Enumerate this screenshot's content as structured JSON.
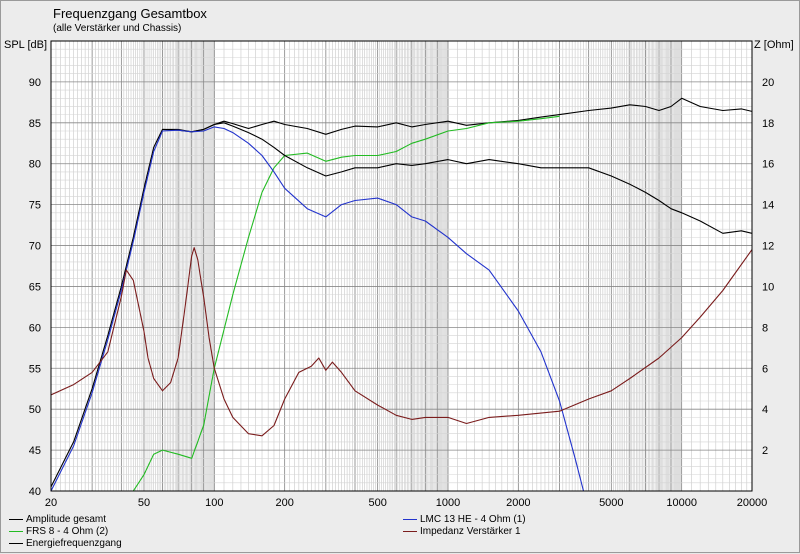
{
  "chart_data": {
    "type": "line",
    "title": "Frequenzgang Gesamtbox",
    "subtitle": "(alle Verstärker und Chassis)",
    "ylabel": "SPL [dB]",
    "y2label": "Z [Ohm]",
    "x_scale": "log",
    "xlim": [
      20,
      20000
    ],
    "ylim": [
      40,
      95
    ],
    "y2lim": [
      0,
      22
    ],
    "x_ticks": [
      20,
      50,
      100,
      200,
      500,
      1000,
      2000,
      5000,
      10000,
      20000
    ],
    "y_ticks": [
      40,
      45,
      50,
      55,
      60,
      65,
      70,
      75,
      80,
      85,
      90
    ],
    "y2_ticks": [
      2,
      4,
      6,
      8,
      10,
      12,
      14,
      16,
      18,
      20
    ],
    "grid": true,
    "legend_placement": "bottom",
    "series": [
      {
        "name": "Amplitude gesamt",
        "axis": "left",
        "color": "#000000",
        "x": [
          20,
          25,
          30,
          35,
          40,
          45,
          50,
          55,
          60,
          70,
          80,
          90,
          100,
          110,
          120,
          140,
          160,
          180,
          200,
          250,
          300,
          350,
          400,
          500,
          600,
          700,
          800,
          1000,
          1200,
          1500,
          2000,
          2500,
          3000,
          4000,
          5000,
          6000,
          7000,
          8000,
          9000,
          10000,
          12000,
          15000,
          18000,
          20000
        ],
        "y": [
          40.5,
          46,
          52.5,
          59,
          65,
          71,
          77,
          82,
          84.2,
          84.2,
          83.9,
          84.2,
          84.8,
          85.2,
          84.9,
          84.3,
          84.8,
          85.2,
          84.8,
          84.3,
          83.6,
          84.2,
          84.6,
          84.5,
          85,
          84.5,
          84.8,
          85.2,
          84.7,
          85,
          85.3,
          85.7,
          86,
          86.5,
          86.8,
          87.2,
          87,
          86.5,
          87,
          88,
          87,
          86.5,
          86.7,
          86.4
        ]
      },
      {
        "name": "FRS 8 - 4 Ohm (2)",
        "axis": "left",
        "color": "#22bb22",
        "x": [
          20,
          40,
          45,
          50,
          55,
          60,
          70,
          80,
          90,
          100,
          120,
          140,
          160,
          180,
          200,
          250,
          300,
          350,
          400,
          500,
          600,
          700,
          800,
          1000,
          1200,
          1500,
          2000,
          2500,
          3000
        ],
        "y": [
          40,
          40,
          40,
          42,
          44.5,
          45,
          44.5,
          44,
          48,
          55,
          64,
          71,
          76.5,
          79.5,
          81,
          81.3,
          80.3,
          80.8,
          81,
          81,
          81.5,
          82.5,
          83,
          84,
          84.3,
          85,
          85.2,
          85.5,
          85.8
        ]
      },
      {
        "name": "Energiefrequenzgang",
        "axis": "left",
        "color": "#000000",
        "x": [
          60,
          70,
          80,
          90,
          100,
          110,
          120,
          140,
          160,
          180,
          200,
          250,
          300,
          350,
          400,
          500,
          600,
          700,
          800,
          1000,
          1200,
          1500,
          2000,
          2500,
          3000,
          4000,
          5000,
          6000,
          7000,
          8000,
          9000,
          10000,
          12000,
          15000,
          18000,
          20000
        ],
        "y": [
          84.2,
          84.1,
          83.9,
          84.2,
          84.8,
          85,
          84.6,
          83.8,
          83,
          82,
          81,
          79.5,
          78.5,
          79,
          79.5,
          79.5,
          80,
          79.8,
          80,
          80.5,
          80,
          80.5,
          80,
          79.5,
          79.5,
          79.5,
          78.5,
          77.5,
          76.5,
          75.5,
          74.5,
          74,
          73,
          71.5,
          71.8,
          71.5
        ]
      },
      {
        "name": "LMC 13 HE - 4 Ohm (1)",
        "axis": "left",
        "color": "#2233cc",
        "x": [
          20,
          25,
          30,
          35,
          40,
          45,
          50,
          55,
          60,
          70,
          80,
          90,
          100,
          110,
          120,
          140,
          160,
          180,
          200,
          250,
          300,
          350,
          400,
          500,
          600,
          700,
          800,
          1000,
          1200,
          1500,
          2000,
          2500,
          3000,
          3500,
          3800,
          4000,
          4500,
          5000,
          10000,
          20000
        ],
        "y": [
          40,
          45.5,
          52,
          58.5,
          64.5,
          70.5,
          76.5,
          81.5,
          84,
          84.1,
          83.9,
          84,
          84.5,
          84.3,
          83.8,
          82.5,
          81,
          79,
          77,
          74.5,
          73.5,
          75,
          75.5,
          75.8,
          75,
          73.5,
          73,
          71,
          69,
          67,
          62,
          57,
          51,
          44,
          40,
          40,
          40,
          40,
          40,
          40
        ]
      },
      {
        "name": "Impedanz Verstärker 1",
        "axis": "right",
        "color": "#7a1c1c",
        "x": [
          20,
          25,
          30,
          35,
          40,
          42,
          45,
          50,
          52,
          55,
          60,
          65,
          70,
          75,
          80,
          82,
          85,
          90,
          95,
          100,
          110,
          120,
          140,
          160,
          180,
          200,
          230,
          260,
          280,
          300,
          320,
          350,
          400,
          500,
          600,
          700,
          800,
          1000,
          1200,
          1500,
          2000,
          3000,
          4000,
          5000,
          6000,
          8000,
          10000,
          12000,
          15000,
          20000
        ],
        "y": [
          4.7,
          5.2,
          5.8,
          6.8,
          9.5,
          10.8,
          10.3,
          7.8,
          6.5,
          5.5,
          4.9,
          5.3,
          6.5,
          9.0,
          11.5,
          11.9,
          11.3,
          9.5,
          7.5,
          6.0,
          4.5,
          3.6,
          2.8,
          2.7,
          3.2,
          4.5,
          5.8,
          6.1,
          6.5,
          5.9,
          6.3,
          5.8,
          4.9,
          4.2,
          3.7,
          3.5,
          3.6,
          3.6,
          3.3,
          3.6,
          3.7,
          3.9,
          4.5,
          4.9,
          5.5,
          6.5,
          7.5,
          8.5,
          9.8,
          11.8
        ]
      }
    ]
  }
}
